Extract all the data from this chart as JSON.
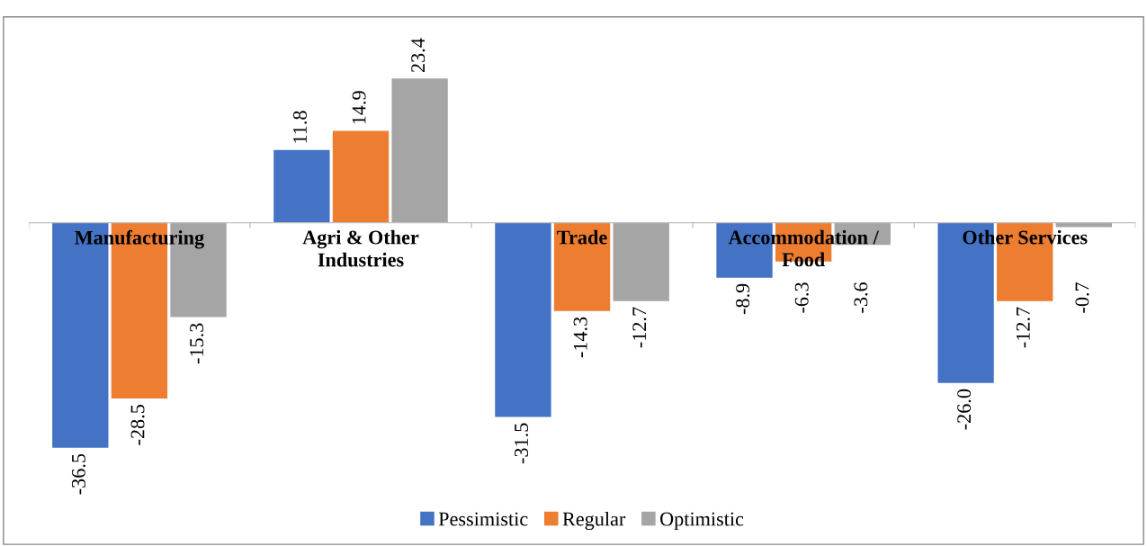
{
  "chart_data": {
    "type": "bar",
    "categories": [
      "Manufacturing",
      "Agri & Other Industries",
      "Trade",
      "Accommodation / Food",
      "Other Services"
    ],
    "series": [
      {
        "name": "Pessimistic",
        "color": "#4472c4",
        "values": [
          -36.5,
          11.8,
          -31.5,
          -8.9,
          -26.0
        ],
        "value_labels": [
          "-36.5",
          "11.8",
          "-31.5",
          "-8.9",
          "-26.0"
        ]
      },
      {
        "name": "Regular",
        "color": "#ed7d31",
        "values": [
          -28.5,
          14.9,
          -14.3,
          -6.3,
          -12.7
        ],
        "value_labels": [
          "-28.5",
          "14.9",
          "-14.3",
          "-6.3",
          "-12.7"
        ]
      },
      {
        "name": "Optimistic",
        "color": "#a5a5a5",
        "values": [
          -15.3,
          23.4,
          -12.7,
          -3.6,
          -0.7
        ],
        "value_labels": [
          "-15.3",
          "23.4",
          "-12.7",
          "-3.6",
          "-0.7"
        ]
      }
    ],
    "legend": "bottom"
  }
}
